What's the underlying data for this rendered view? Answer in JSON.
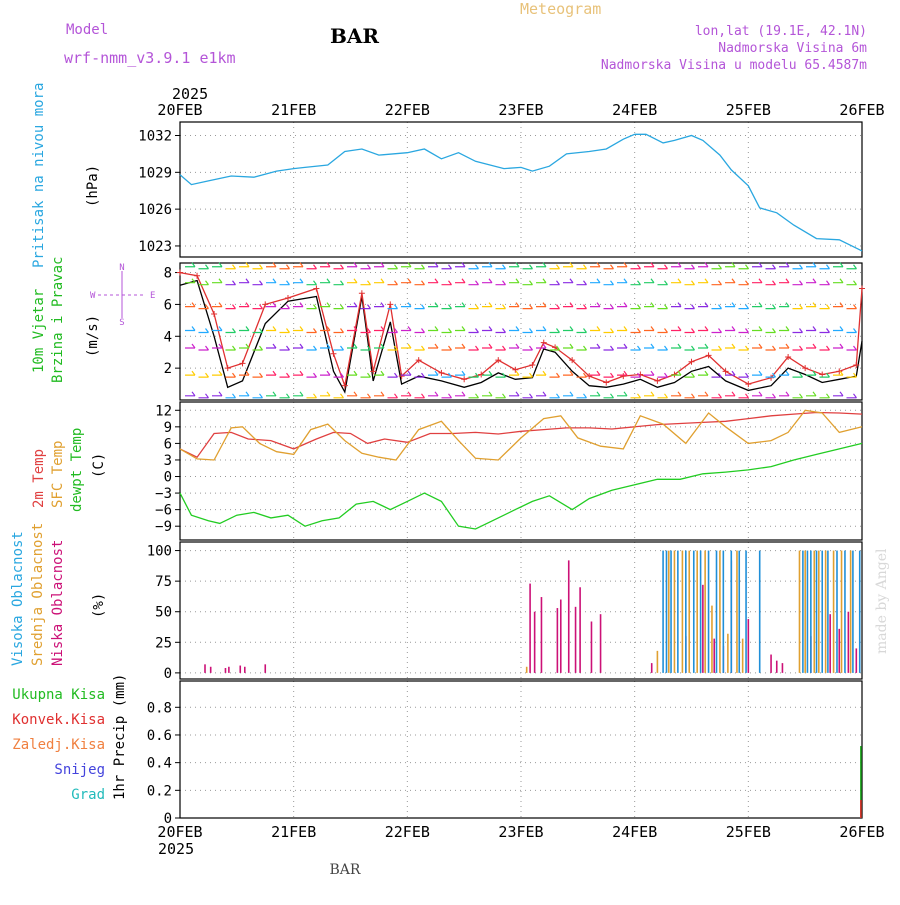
{
  "header": {
    "model_label": "Model",
    "model_name": "wrf-nmm_v3.9.1 e1km",
    "station": "BAR",
    "meteogram": "Meteogram",
    "lonlat": "lon,lat (19.1E, 42.1N)",
    "elevation": "Nadmorska Visina 6m",
    "model_elevation": "Nadmorska Visina u modelu 65.4587m",
    "footer_station": "BAR",
    "credit": "made by Angel",
    "year": "2025"
  },
  "colors": {
    "pressure": "#2aa7e0",
    "wind_speed": "#000000",
    "wind_gust": "#e03030",
    "temp_2m": "#e04040",
    "temp_sfc": "#e0a030",
    "dewpoint": "#22cc22",
    "cloud_high": "#1f8fd8",
    "cloud_mid": "#e0a030",
    "cloud_low": "#cc1177",
    "precip_total": "#22aa22",
    "precip_conv": "#e03030",
    "frame": "#000000",
    "grid": "#999999",
    "title_purple": "#b455d8",
    "title_gold": "#e8c27a"
  },
  "chart_data": [
    {
      "id": "pressure",
      "type": "line",
      "xlabels": [
        "20FEB",
        "21FEB",
        "22FEB",
        "23FEB",
        "24FEB",
        "25FEB",
        "26FEB"
      ],
      "x_start": "2025-02-20 00:00",
      "x_end": "2025-02-26 00:00",
      "ylabel_side": "Pritisak na nivou mora",
      "ylabel_unit": "(hPa)",
      "yticks": [
        1023,
        1026,
        1029,
        1032
      ],
      "ylim": [
        1022.1,
        1033.1
      ],
      "series": [
        {
          "color_key": "pressure",
          "x": [
            0,
            0.1,
            0.25,
            0.45,
            0.65,
            0.85,
            1.0,
            1.1,
            1.3,
            1.45,
            1.6,
            1.75,
            2.0,
            2.15,
            2.3,
            2.45,
            2.6,
            2.85,
            3.0,
            3.1,
            3.25,
            3.4,
            3.6,
            3.75,
            3.9,
            4.0,
            4.1,
            4.25,
            4.35,
            4.5,
            4.6,
            4.75,
            4.85,
            5.0,
            5.1,
            5.25,
            5.4,
            5.6,
            5.8,
            6.0
          ],
          "y": [
            1028.8,
            1028.0,
            1028.3,
            1028.7,
            1028.6,
            1029.1,
            1029.3,
            1029.4,
            1029.6,
            1030.7,
            1030.9,
            1030.4,
            1030.6,
            1030.9,
            1030.1,
            1030.6,
            1029.9,
            1029.3,
            1029.4,
            1029.1,
            1029.5,
            1030.5,
            1030.7,
            1030.9,
            1031.7,
            1032.1,
            1032.1,
            1031.4,
            1031.6,
            1032.0,
            1031.6,
            1030.4,
            1029.2,
            1027.9,
            1026.1,
            1025.7,
            1024.7,
            1023.6,
            1023.5,
            1022.6
          ]
        }
      ]
    },
    {
      "id": "wind",
      "type": "line",
      "ylabel_side_1": "10m Vjetar",
      "ylabel_side_2": "Brzina i Pravac",
      "ylabel_unit": "(m/s)",
      "compass_n": "N",
      "compass_w": "W",
      "compass_e": "E",
      "compass_s": "S",
      "yticks": [
        2,
        4,
        6,
        8
      ],
      "ylim": [
        0,
        8.6
      ],
      "series": [
        {
          "name_key": "speed",
          "color_key": "wind_speed",
          "x": [
            0,
            0.15,
            0.3,
            0.42,
            0.55,
            0.75,
            0.95,
            1.2,
            1.35,
            1.45,
            1.6,
            1.7,
            1.85,
            1.95,
            2.1,
            2.3,
            2.5,
            2.65,
            2.8,
            2.95,
            3.1,
            3.2,
            3.3,
            3.45,
            3.6,
            3.75,
            3.9,
            4.05,
            4.2,
            4.35,
            4.5,
            4.65,
            4.8,
            5.0,
            5.2,
            5.35,
            5.5,
            5.65,
            5.8,
            5.95,
            6.0
          ],
          "y": [
            7.2,
            7.5,
            4.0,
            0.8,
            1.2,
            4.8,
            6.2,
            6.5,
            1.8,
            0.5,
            6.5,
            1.2,
            4.9,
            1.0,
            1.5,
            1.2,
            0.8,
            1.1,
            1.7,
            1.3,
            1.4,
            3.2,
            3.0,
            1.8,
            0.9,
            0.8,
            1.0,
            1.3,
            0.8,
            1.1,
            1.8,
            2.1,
            1.2,
            0.6,
            0.9,
            2.0,
            1.6,
            1.1,
            1.3,
            1.5,
            3.7
          ]
        },
        {
          "name_key": "gust",
          "color_key": "wind_gust",
          "x": [
            0,
            0.15,
            0.3,
            0.42,
            0.55,
            0.75,
            0.95,
            1.2,
            1.35,
            1.45,
            1.6,
            1.7,
            1.85,
            1.95,
            2.1,
            2.3,
            2.5,
            2.65,
            2.8,
            2.95,
            3.1,
            3.2,
            3.3,
            3.45,
            3.6,
            3.75,
            3.9,
            4.05,
            4.2,
            4.35,
            4.5,
            4.65,
            4.8,
            5.0,
            5.2,
            5.35,
            5.5,
            5.65,
            5.8,
            5.95,
            6.0
          ],
          "y": [
            8.0,
            7.8,
            5.4,
            2.0,
            2.3,
            6.0,
            6.4,
            7.0,
            2.9,
            0.9,
            6.7,
            1.8,
            6.0,
            1.5,
            2.5,
            1.7,
            1.3,
            1.6,
            2.5,
            1.9,
            2.2,
            3.6,
            3.3,
            2.5,
            1.5,
            1.1,
            1.5,
            1.6,
            1.2,
            1.6,
            2.4,
            2.8,
            1.8,
            1.0,
            1.4,
            2.7,
            2.0,
            1.6,
            1.8,
            2.2,
            7.0
          ]
        }
      ]
    },
    {
      "id": "temperature",
      "type": "line",
      "ylabel_side_1": "2m Temp",
      "ylabel_side_2": "SFC Temp",
      "ylabel_side_3": "dewpt Temp",
      "ylabel_unit": "(C)",
      "yticks": [
        -9,
        -6,
        -3,
        0,
        3,
        6,
        9,
        12
      ],
      "ylim": [
        -11.5,
        13.5
      ],
      "series": [
        {
          "name_key": "2m",
          "color_key": "temp_2m",
          "x": [
            0,
            0.15,
            0.3,
            0.45,
            0.6,
            0.8,
            1.0,
            1.2,
            1.35,
            1.5,
            1.65,
            1.8,
            2.0,
            2.2,
            2.4,
            2.6,
            2.8,
            3.0,
            3.2,
            3.4,
            3.6,
            3.8,
            4.0,
            4.2,
            4.4,
            4.6,
            4.8,
            5.0,
            5.2,
            5.4,
            5.6,
            5.8,
            6.0
          ],
          "y": [
            5.0,
            3.5,
            7.8,
            8.0,
            6.8,
            6.5,
            5.0,
            6.8,
            8.0,
            7.8,
            6.0,
            6.8,
            6.2,
            7.8,
            7.8,
            8.0,
            7.7,
            8.2,
            8.5,
            8.8,
            8.8,
            8.6,
            9.0,
            9.4,
            9.6,
            9.8,
            10.0,
            10.5,
            11.0,
            11.3,
            11.6,
            11.5,
            11.3
          ]
        },
        {
          "name_key": "sfc",
          "color_key": "temp_sfc",
          "x": [
            0,
            0.15,
            0.3,
            0.45,
            0.55,
            0.7,
            0.85,
            1.0,
            1.15,
            1.3,
            1.45,
            1.6,
            1.75,
            1.9,
            2.1,
            2.3,
            2.45,
            2.6,
            2.8,
            3.0,
            3.2,
            3.35,
            3.5,
            3.7,
            3.9,
            4.05,
            4.25,
            4.45,
            4.65,
            4.8,
            5.0,
            5.2,
            5.35,
            5.5,
            5.65,
            5.8,
            6.0
          ],
          "y": [
            5.0,
            3.2,
            3.0,
            8.8,
            9.0,
            6.0,
            4.5,
            4.0,
            8.5,
            9.5,
            6.5,
            4.2,
            3.5,
            3.0,
            8.5,
            10.0,
            6.5,
            3.3,
            3.0,
            7.0,
            10.5,
            11.0,
            7.0,
            5.5,
            5.0,
            11.0,
            9.5,
            6.0,
            11.5,
            9.0,
            6.0,
            6.5,
            8.0,
            12.0,
            11.5,
            8.0,
            9.0
          ]
        },
        {
          "name_key": "dew",
          "color_key": "dewpoint",
          "x": [
            0,
            0.1,
            0.25,
            0.35,
            0.5,
            0.65,
            0.8,
            0.95,
            1.1,
            1.25,
            1.4,
            1.55,
            1.7,
            1.85,
            2.0,
            2.15,
            2.3,
            2.45,
            2.6,
            2.75,
            2.95,
            3.1,
            3.25,
            3.45,
            3.6,
            3.8,
            4.0,
            4.2,
            4.4,
            4.6,
            4.8,
            5.0,
            5.2,
            5.4,
            5.6,
            5.8,
            6.0
          ],
          "y": [
            -3,
            -7,
            -8,
            -8.5,
            -7,
            -6.5,
            -7.5,
            -7,
            -9,
            -8,
            -7.5,
            -5,
            -4.5,
            -6,
            -4.5,
            -3,
            -4.5,
            -9,
            -9.5,
            -8,
            -6,
            -4.5,
            -3.5,
            -6,
            -4,
            -2.5,
            -1.5,
            -0.5,
            -0.5,
            0.5,
            0.8,
            1.2,
            1.8,
            3.0,
            4.0,
            5.0,
            6.0
          ]
        }
      ]
    },
    {
      "id": "clouds",
      "type": "bar",
      "ylabel_side_1": "Visoka Oblacnost",
      "ylabel_side_2": "Srednja Oblacnost",
      "ylabel_side_3": "Niska Oblacnost",
      "ylabel_unit": "(%)",
      "yticks": [
        0,
        25,
        50,
        75,
        100
      ],
      "ylim": [
        -5,
        107
      ],
      "series": [
        {
          "name_key": "low",
          "color_key": "cloud_low",
          "x": [
            0.22,
            0.27,
            0.4,
            0.43,
            0.53,
            0.57,
            0.75,
            3.08,
            3.12,
            3.18,
            3.32,
            3.35,
            3.42,
            3.48,
            3.52,
            3.62,
            3.7,
            4.15,
            4.45,
            4.6,
            4.7,
            4.78,
            4.85,
            5.0,
            5.2,
            5.25,
            5.3,
            5.55,
            5.72,
            5.8,
            5.88,
            5.95
          ],
          "values": [
            7,
            5,
            4,
            5,
            6,
            5,
            7,
            73,
            50,
            62,
            53,
            60,
            92,
            54,
            70,
            42,
            48,
            8,
            30,
            72,
            28,
            22,
            92,
            44,
            15,
            10,
            8,
            30,
            48,
            36,
            50,
            20
          ]
        },
        {
          "name_key": "mid",
          "color_key": "cloud_mid",
          "x": [
            3.05,
            4.2,
            4.3,
            4.35,
            4.42,
            4.48,
            4.55,
            4.62,
            4.68,
            4.75,
            4.82,
            4.9,
            4.95,
            5.45,
            5.5,
            5.58,
            5.62,
            5.68,
            5.75,
            5.82,
            5.9
          ],
          "values": [
            5,
            18,
            100,
            100,
            100,
            100,
            100,
            100,
            55,
            100,
            32,
            100,
            28,
            100,
            100,
            100,
            100,
            100,
            100,
            100,
            100
          ]
        },
        {
          "name_key": "high",
          "color_key": "cloud_high",
          "x": [
            4.25,
            4.28,
            4.32,
            4.38,
            4.45,
            4.52,
            4.58,
            4.65,
            4.72,
            4.78,
            4.85,
            4.92,
            4.98,
            5.1,
            5.48,
            5.52,
            5.55,
            5.6,
            5.65,
            5.7,
            5.78,
            5.85,
            5.92,
            5.98
          ],
          "values": [
            100,
            100,
            100,
            100,
            100,
            100,
            100,
            100,
            100,
            100,
            100,
            100,
            100,
            100,
            100,
            100,
            100,
            100,
            100,
            100,
            100,
            100,
            100,
            100
          ]
        }
      ]
    },
    {
      "id": "precip",
      "type": "bar",
      "ylabel_unit": "1hr Precip (mm)",
      "legend": [
        "Ukupna Kisa",
        "Konvek.Kisa",
        "Zaledj.Kisa",
        "Snijeg",
        "Grad"
      ],
      "yticks": [
        0,
        0.2,
        0.4,
        0.6,
        0.8
      ],
      "ylim": [
        0,
        0.99
      ],
      "series": [
        {
          "name": "Ukupna Kisa",
          "color_key": "precip_total",
          "x": [
            5.99
          ],
          "values": [
            0.52
          ]
        },
        {
          "name": "Konvek.Kisa",
          "color_key": "precip_conv",
          "x": [
            5.99
          ],
          "values": [
            0.13
          ]
        }
      ]
    }
  ]
}
